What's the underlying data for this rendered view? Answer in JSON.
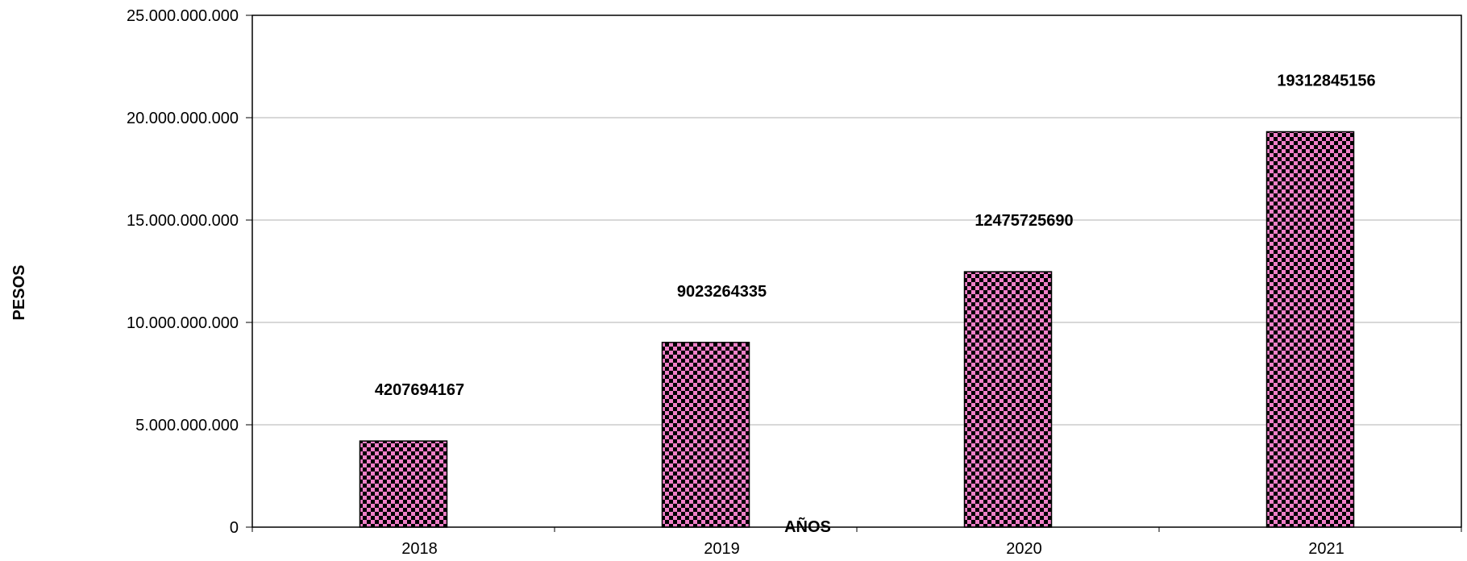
{
  "chart_data": {
    "type": "bar",
    "categories": [
      "2018",
      "2019",
      "2020",
      "2021"
    ],
    "values": [
      4207694167,
      9023264335,
      12475725690,
      19312845156
    ],
    "data_labels": [
      "4207694167",
      "9023264335",
      "12475725690",
      "19312845156"
    ],
    "xlabel": "AÑOS",
    "ylabel": "PESOS",
    "ylim": [
      0,
      25000000000
    ],
    "yticks": [
      0,
      5000000000,
      10000000000,
      15000000000,
      20000000000,
      25000000000
    ],
    "ytick_labels": [
      "0",
      "5.000.000.000",
      "10.000.000.000",
      "15.000.000.000",
      "20.000.000.000",
      "25.000.000.000"
    ],
    "grid": true,
    "legend": "none",
    "colors": {
      "bar_fill": "#f080c8",
      "bar_pattern": "#000000",
      "grid": "#b0b0b0",
      "axis": "#000000"
    }
  }
}
